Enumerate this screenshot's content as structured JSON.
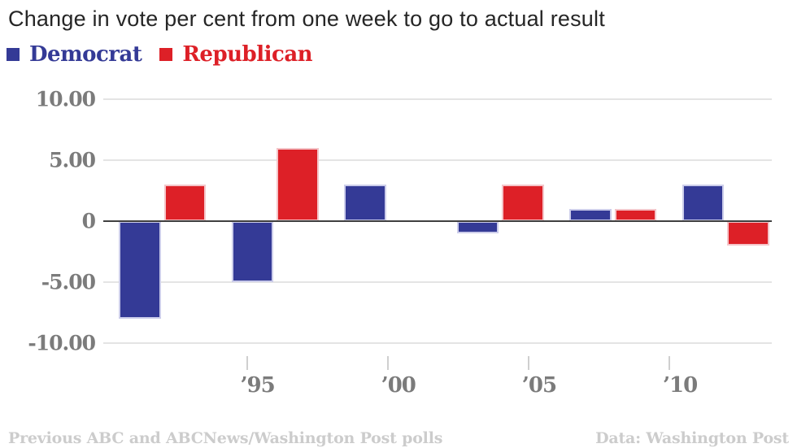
{
  "title": "Change in vote per cent from one week to go to actual result",
  "legend": {
    "items": [
      {
        "label": "Democrat"
      },
      {
        "label": "Republican"
      }
    ]
  },
  "footer": {
    "left": "Previous ABC and ABCNews/Washington Post polls",
    "right": "Data: Washington Post"
  },
  "colors": {
    "grid": "#E4E4E4",
    "axis": "#404040",
    "label": "#7B7B7B",
    "muted": "#CCCCCC",
    "title_text": "#262626"
  },
  "chart_data": {
    "type": "bar",
    "title": "Change in vote per cent from one week to go to actual result",
    "categories": [
      "1992",
      "1996",
      "2000",
      "2004",
      "2008",
      "2012"
    ],
    "series": [
      {
        "name": "Democrat",
        "color": "#343A96",
        "stroke": "#CCCDEA",
        "values": [
          -8,
          -5,
          3,
          -1,
          1,
          3
        ]
      },
      {
        "name": "Republican",
        "color": "#DD2027",
        "stroke": "#F4C5C9",
        "values": [
          3,
          6,
          0,
          3,
          1,
          -2
        ]
      }
    ],
    "x_tick_years": [
      1995,
      2000,
      2005,
      2010
    ],
    "x_tick_labels": [
      "’95",
      "’00",
      "’05",
      "’10"
    ],
    "y_ticks": [
      10,
      5,
      0,
      -5,
      -10
    ],
    "y_tick_labels": [
      "10.00",
      "5.00",
      "0",
      "-5.00",
      "-10.00"
    ],
    "ylim": [
      -10,
      10
    ],
    "xlabel": "",
    "ylabel": "",
    "grid": "horizontal",
    "legend_position": "top-left"
  }
}
